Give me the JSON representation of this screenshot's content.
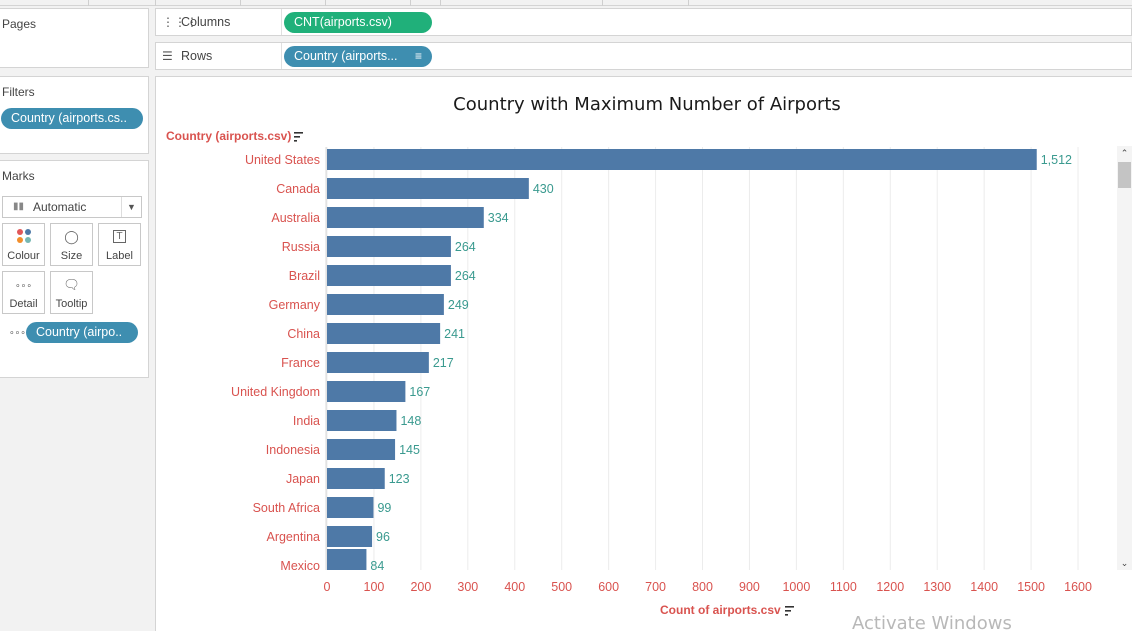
{
  "left_panel": {
    "pages_title": "Pages",
    "filters_title": "Filters",
    "filter_pill": "Country (airports.cs..",
    "marks_title": "Marks",
    "mark_type": "Automatic",
    "mark_cards": [
      {
        "label": "Colour",
        "icon": "colour-icon"
      },
      {
        "label": "Size",
        "icon": "size-icon"
      },
      {
        "label": "Label",
        "icon": "label-icon"
      },
      {
        "label": "Detail",
        "icon": "detail-icon"
      },
      {
        "label": "Tooltip",
        "icon": "tooltip-icon"
      }
    ],
    "detail_pill": "Country (airpo.."
  },
  "shelves": {
    "columns_label": "Columns",
    "columns_pill": "CNT(airports.csv)",
    "rows_label": "Rows",
    "rows_pill": "Country (airports..."
  },
  "colors": {
    "bar": "#4e79a7",
    "category_text": "#d9534f",
    "value_text": "#3a9a8f",
    "green_pill": "#20b07a",
    "blue_pill": "#3e8eb0"
  },
  "chart_data": {
    "type": "bar",
    "orientation": "horizontal",
    "title": "Country with Maximum Number of Airports",
    "ylabel": "Country (airports.csv)",
    "xlabel": "Count of airports.csv",
    "categories": [
      "United States",
      "Canada",
      "Australia",
      "Russia",
      "Brazil",
      "Germany",
      "China",
      "France",
      "United Kingdom",
      "India",
      "Indonesia",
      "Japan",
      "South Africa",
      "Argentina",
      "Mexico"
    ],
    "values": [
      1512,
      430,
      334,
      264,
      264,
      249,
      241,
      217,
      167,
      148,
      145,
      123,
      99,
      96,
      84
    ],
    "value_labels": [
      "1,512",
      "430",
      "334",
      "264",
      "264",
      "249",
      "241",
      "217",
      "167",
      "148",
      "145",
      "123",
      "99",
      "96",
      "84"
    ],
    "xticks": [
      0,
      100,
      200,
      300,
      400,
      500,
      600,
      700,
      800,
      900,
      1000,
      1100,
      1200,
      1300,
      1400,
      1500,
      1600
    ],
    "xlim": [
      0,
      1650
    ],
    "grid": true
  },
  "watermark": "Activate Windows"
}
